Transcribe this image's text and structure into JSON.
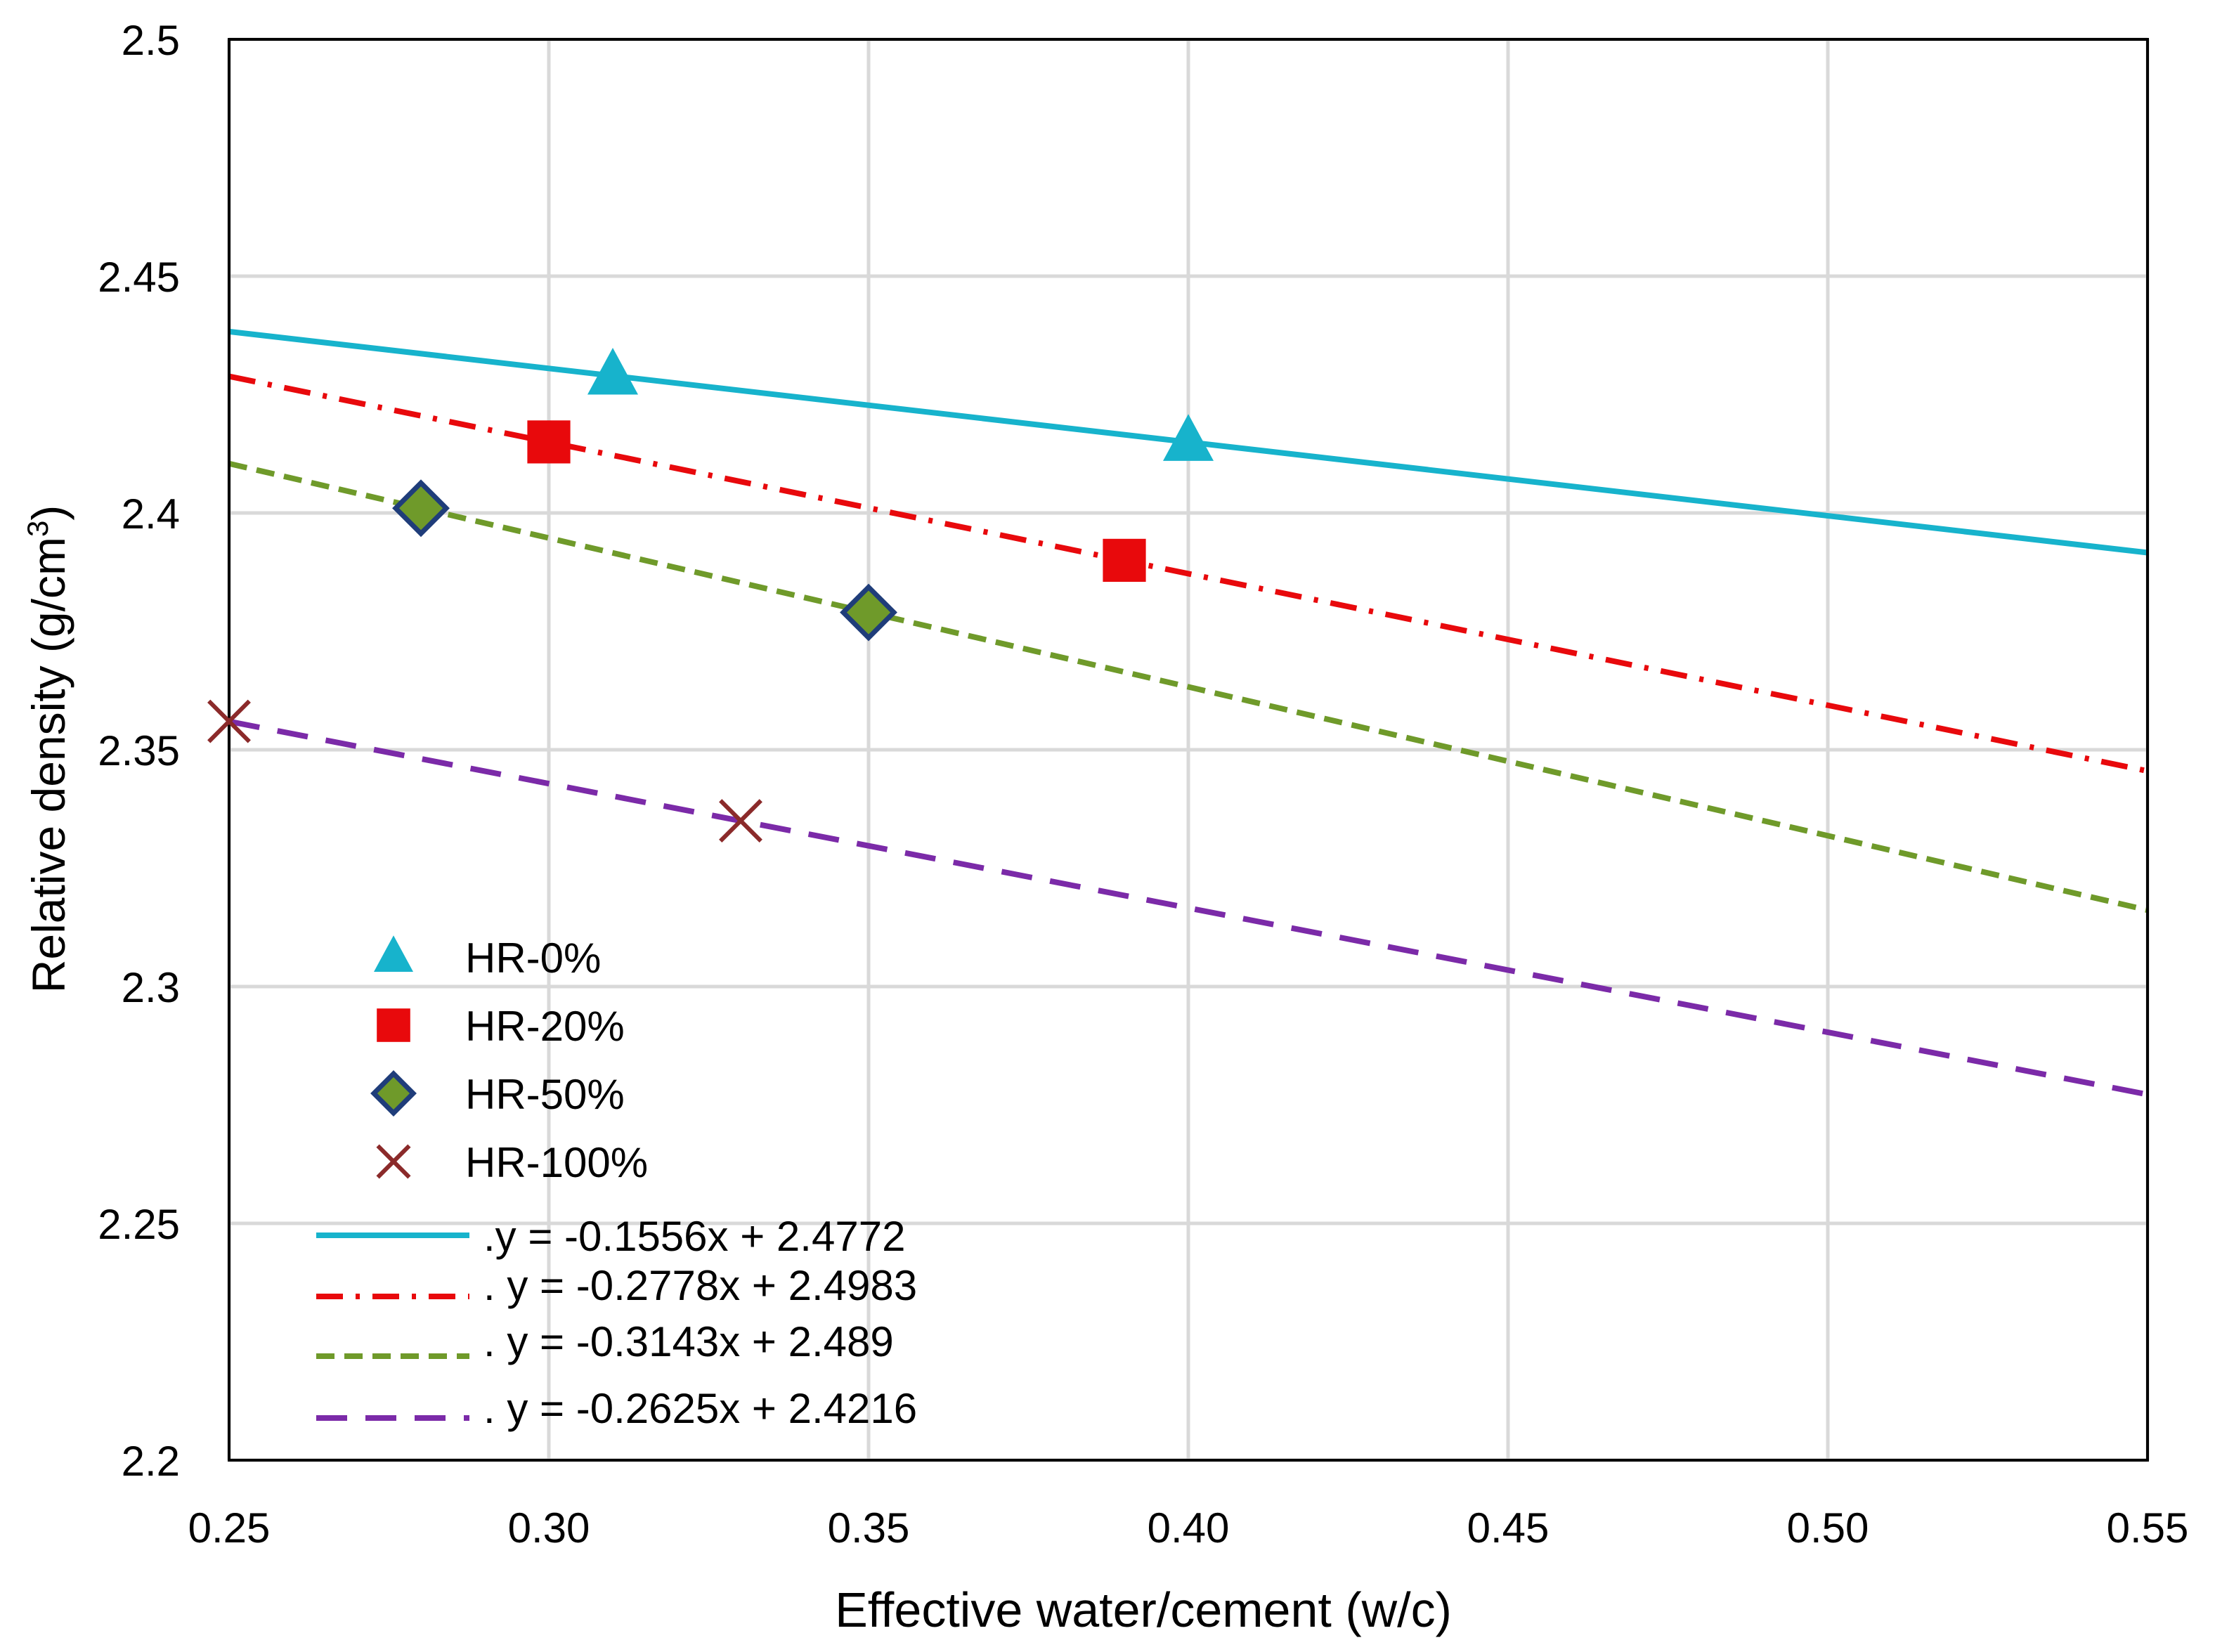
{
  "chart_data": {
    "type": "scatter",
    "title": "",
    "xlabel": "Effective water/cement (w/c)",
    "ylabel_main": "Relative density (g/cm",
    "ylabel_sup": "3",
    "ylabel_close": ")",
    "xlim": [
      0.25,
      0.55
    ],
    "ylim": [
      2.2,
      2.5
    ],
    "xticks": [
      0.25,
      0.3,
      0.35,
      0.4,
      0.45,
      0.5,
      0.55
    ],
    "xtick_labels": [
      "0.25",
      "0.30",
      "0.35",
      "0.40",
      "0.45",
      "0.50",
      "0.55"
    ],
    "yticks": [
      2.2,
      2.25,
      2.3,
      2.35,
      2.4,
      2.45,
      2.5
    ],
    "ytick_labels": [
      "2.2",
      "2.25",
      "2.3",
      "2.35",
      "2.4",
      "2.45",
      "2.5"
    ],
    "grid": true,
    "legend_position": "bottom-left",
    "series": [
      {
        "name": "HR-0%",
        "marker": "triangle",
        "color": "#17b3cc",
        "edge": "#17b3cc",
        "x": [
          0.31,
          0.4
        ],
        "y": [
          2.429,
          2.415
        ]
      },
      {
        "name": "HR-20%",
        "marker": "square",
        "color": "#e8090c",
        "edge": "#e8090c",
        "x": [
          0.3,
          0.39
        ],
        "y": [
          2.415,
          2.39
        ]
      },
      {
        "name": "HR-50%",
        "marker": "diamond",
        "color": "#6f9a2a",
        "edge": "#1f3d7a",
        "x": [
          0.28,
          0.35
        ],
        "y": [
          2.401,
          2.379
        ]
      },
      {
        "name": "HR-100%",
        "marker": "x",
        "color": "#8b2a2a",
        "edge": "#8b2a2a",
        "x": [
          0.25,
          0.33
        ],
        "y": [
          2.356,
          2.335
        ]
      }
    ],
    "trendlines": [
      {
        "label": ".y = -0.1556x + 2.4772",
        "slope": -0.1556,
        "intercept": 2.4772,
        "color": "#17b3cc",
        "dash": "solid"
      },
      {
        "label": ".  y = -0.2778x + 2.4983",
        "slope": -0.2778,
        "intercept": 2.4983,
        "color": "#e8090c",
        "dash": "dashdot"
      },
      {
        "label": ".  y = -0.3143x + 2.489",
        "slope": -0.3143,
        "intercept": 2.489,
        "color": "#6f9a2a",
        "dash": "dash"
      },
      {
        "label": ".  y = -0.2625x + 2.4216",
        "slope": -0.2625,
        "intercept": 2.4216,
        "color": "#7b2aa8",
        "dash": "longdash"
      }
    ]
  }
}
